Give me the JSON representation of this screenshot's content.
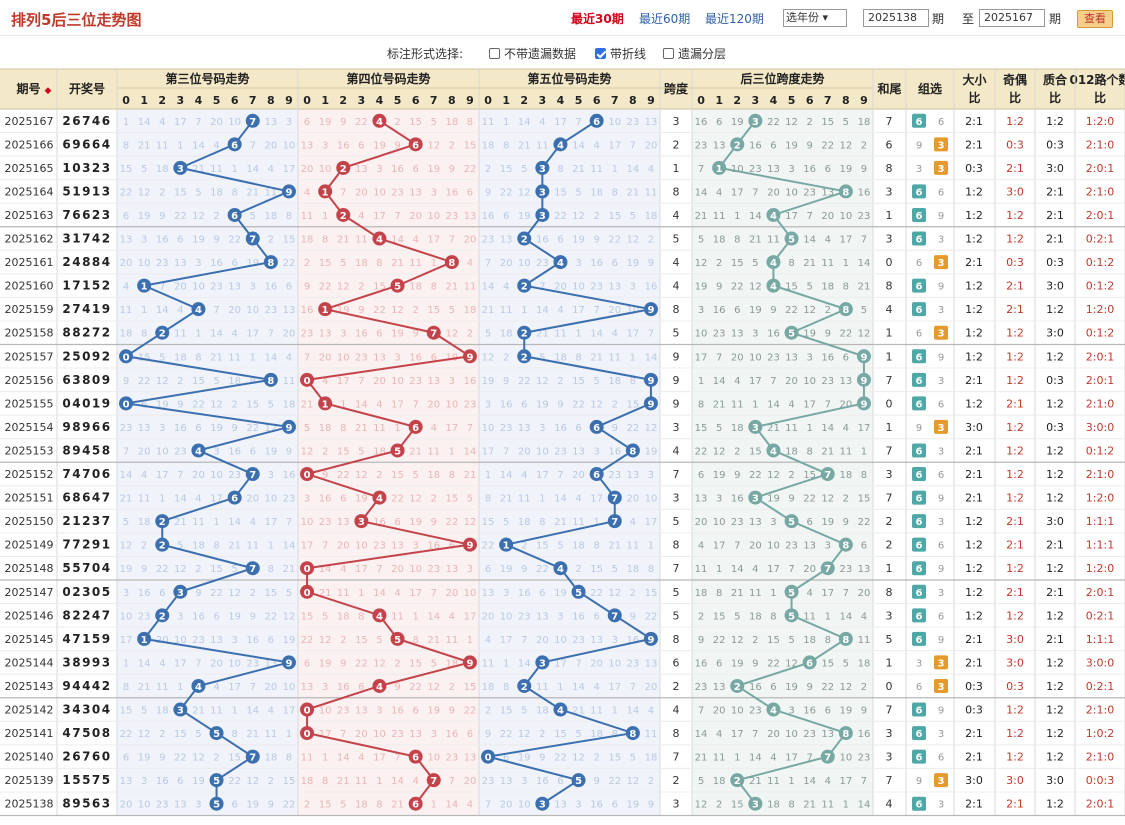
{
  "header": {
    "title": "排列5后三位走势图",
    "tabs": [
      "最近30期",
      "最近60期",
      "最近120期"
    ],
    "year_select": "选年份",
    "from": "2025138",
    "to": "2025167",
    "qi": "期",
    "zhi": "至",
    "view_btn": "查看"
  },
  "options": {
    "label": "标注形式选择:",
    "items": [
      {
        "label": "不带遗漏数据",
        "checked": false
      },
      {
        "label": "带折线",
        "checked": true
      },
      {
        "label": "遗漏分层",
        "checked": false
      }
    ]
  },
  "columns": {
    "period": "期号",
    "draw": "开奖号",
    "pos3": "第三位号码走势",
    "pos4": "第四位号码走势",
    "pos5": "第五位号码走势",
    "span": "跨度",
    "span_trend": "后三位跨度走势",
    "sum_tail": "和尾",
    "group": "组选",
    "big_small": "大小比",
    "odd_even": "奇偶比",
    "prime_comp": "质合比",
    "road012": "012路个数比"
  },
  "colors": {
    "pos3": "#3b6fb0",
    "pos4": "#c4434b",
    "pos5": "#3b6fb0",
    "span": "#78a8a3",
    "grid_bg3": "#f0f3fa",
    "grid_bg4": "#fbf1f1",
    "grid_bg5": "#f0f3fa",
    "grid_bgs": "#f1f6f5",
    "head_bg": "#f3e8c8",
    "badge": "#4fa7a6",
    "badge_alt": "#e69a2e"
  },
  "rows": [
    {
      "period": "2025167",
      "draw": "26746",
      "span": 3,
      "group": "6",
      "sum": 7,
      "bs": "2:1",
      "oe": "1:2",
      "pc": "1:2",
      "r012": "1:2:0"
    },
    {
      "period": "2025166",
      "draw": "69664",
      "span": 2,
      "group": "3",
      "sum": 6,
      "bs": "2:1",
      "oe": "0:3",
      "pc": "0:3",
      "r012": "2:1:0"
    },
    {
      "period": "2025165",
      "draw": "10323",
      "span": 1,
      "group": "3",
      "sum": 8,
      "bs": "0:3",
      "oe": "2:1",
      "pc": "3:0",
      "r012": "2:0:1"
    },
    {
      "period": "2025164",
      "draw": "51913",
      "span": 8,
      "group": "6",
      "sum": 3,
      "bs": "1:2",
      "oe": "3:0",
      "pc": "2:1",
      "r012": "2:1:0"
    },
    {
      "period": "2025163",
      "draw": "76623",
      "span": 4,
      "group": "6",
      "sum": 1,
      "bs": "1:2",
      "oe": "1:2",
      "pc": "2:1",
      "r012": "2:0:1"
    },
    {
      "period": "2025162",
      "draw": "31742",
      "span": 5,
      "group": "6",
      "sum": 3,
      "bs": "1:2",
      "oe": "1:2",
      "pc": "2:1",
      "r012": "0:2:1"
    },
    {
      "period": "2025161",
      "draw": "24884",
      "span": 4,
      "group": "3",
      "sum": 0,
      "bs": "2:1",
      "oe": "0:3",
      "pc": "0:3",
      "r012": "0:1:2"
    },
    {
      "period": "2025160",
      "draw": "17152",
      "span": 4,
      "group": "6",
      "sum": 8,
      "bs": "1:2",
      "oe": "2:1",
      "pc": "3:0",
      "r012": "0:1:2"
    },
    {
      "period": "2025159",
      "draw": "27419",
      "span": 8,
      "group": "6",
      "sum": 4,
      "bs": "1:2",
      "oe": "2:1",
      "pc": "1:2",
      "r012": "1:2:0"
    },
    {
      "period": "2025158",
      "draw": "88272",
      "span": 5,
      "group": "3",
      "sum": 1,
      "bs": "1:2",
      "oe": "1:2",
      "pc": "3:0",
      "r012": "0:1:2"
    },
    {
      "period": "2025157",
      "draw": "25092",
      "span": 9,
      "group": "6",
      "sum": 1,
      "bs": "1:2",
      "oe": "1:2",
      "pc": "1:2",
      "r012": "2:0:1"
    },
    {
      "period": "2025156",
      "draw": "63809",
      "span": 9,
      "group": "6",
      "sum": 7,
      "bs": "2:1",
      "oe": "1:2",
      "pc": "0:3",
      "r012": "2:0:1"
    },
    {
      "period": "2025155",
      "draw": "04019",
      "span": 9,
      "group": "6",
      "sum": 0,
      "bs": "1:2",
      "oe": "2:1",
      "pc": "1:2",
      "r012": "2:1:0"
    },
    {
      "period": "2025154",
      "draw": "98966",
      "span": 3,
      "group": "3",
      "sum": 1,
      "bs": "3:0",
      "oe": "1:2",
      "pc": "0:3",
      "r012": "3:0:0"
    },
    {
      "period": "2025153",
      "draw": "89458",
      "span": 4,
      "group": "6",
      "sum": 7,
      "bs": "2:1",
      "oe": "1:2",
      "pc": "1:2",
      "r012": "0:1:2"
    },
    {
      "period": "2025152",
      "draw": "74706",
      "span": 7,
      "group": "6",
      "sum": 3,
      "bs": "2:1",
      "oe": "1:2",
      "pc": "1:2",
      "r012": "2:1:0"
    },
    {
      "period": "2025151",
      "draw": "68647",
      "span": 3,
      "group": "6",
      "sum": 7,
      "bs": "2:1",
      "oe": "1:2",
      "pc": "1:2",
      "r012": "1:2:0"
    },
    {
      "period": "2025150",
      "draw": "21237",
      "span": 5,
      "group": "6",
      "sum": 2,
      "bs": "1:2",
      "oe": "2:1",
      "pc": "3:0",
      "r012": "1:1:1"
    },
    {
      "period": "2025149",
      "draw": "77291",
      "span": 8,
      "group": "6",
      "sum": 2,
      "bs": "1:2",
      "oe": "2:1",
      "pc": "2:1",
      "r012": "1:1:1"
    },
    {
      "period": "2025148",
      "draw": "55704",
      "span": 7,
      "group": "6",
      "sum": 1,
      "bs": "1:2",
      "oe": "1:2",
      "pc": "1:2",
      "r012": "1:2:0"
    },
    {
      "period": "2025147",
      "draw": "02305",
      "span": 5,
      "group": "6",
      "sum": 8,
      "bs": "1:2",
      "oe": "2:1",
      "pc": "2:1",
      "r012": "2:0:1"
    },
    {
      "period": "2025146",
      "draw": "82247",
      "span": 5,
      "group": "6",
      "sum": 3,
      "bs": "1:2",
      "oe": "1:2",
      "pc": "1:2",
      "r012": "0:2:1"
    },
    {
      "period": "2025145",
      "draw": "47159",
      "span": 8,
      "group": "6",
      "sum": 5,
      "bs": "2:1",
      "oe": "3:0",
      "pc": "2:1",
      "r012": "1:1:1"
    },
    {
      "period": "2025144",
      "draw": "38993",
      "span": 6,
      "group": "3",
      "sum": 1,
      "bs": "2:1",
      "oe": "3:0",
      "pc": "1:2",
      "r012": "3:0:0"
    },
    {
      "period": "2025143",
      "draw": "94442",
      "span": 2,
      "group": "3",
      "sum": 0,
      "bs": "0:3",
      "oe": "0:3",
      "pc": "1:2",
      "r012": "0:2:1"
    },
    {
      "period": "2025142",
      "draw": "34304",
      "span": 4,
      "group": "6",
      "sum": 7,
      "bs": "0:3",
      "oe": "1:2",
      "pc": "1:2",
      "r012": "2:1:0"
    },
    {
      "period": "2025141",
      "draw": "47508",
      "span": 8,
      "group": "6",
      "sum": 3,
      "bs": "2:1",
      "oe": "1:2",
      "pc": "1:2",
      "r012": "1:0:2"
    },
    {
      "period": "2025140",
      "draw": "26760",
      "span": 7,
      "group": "6",
      "sum": 3,
      "bs": "2:1",
      "oe": "1:2",
      "pc": "1:2",
      "r012": "2:1:0"
    },
    {
      "period": "2025139",
      "draw": "15575",
      "span": 2,
      "group": "3",
      "sum": 7,
      "bs": "3:0",
      "oe": "3:0",
      "pc": "3:0",
      "r012": "0:0:3"
    },
    {
      "period": "2025138",
      "draw": "89563",
      "span": 3,
      "group": "6",
      "sum": 4,
      "bs": "2:1",
      "oe": "2:1",
      "pc": "1:2",
      "r012": "2:0:1"
    }
  ]
}
